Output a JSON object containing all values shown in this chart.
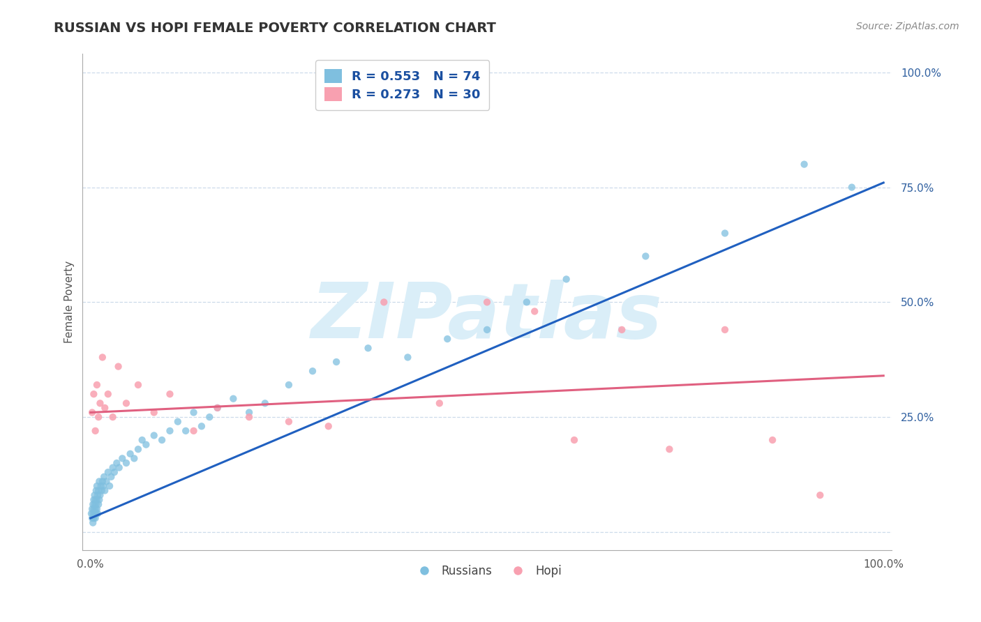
{
  "title": "RUSSIAN VS HOPI FEMALE POVERTY CORRELATION CHART",
  "source": "Source: ZipAtlas.com",
  "ylabel": "Female Poverty",
  "russian_R": 0.553,
  "russian_N": 74,
  "hopi_R": 0.273,
  "hopi_N": 30,
  "russian_color": "#7fbfdf",
  "hopi_color": "#f8a0b0",
  "russian_line_color": "#2060c0",
  "hopi_line_color": "#e06080",
  "background_color": "#ffffff",
  "watermark_color": "#daeef8",
  "russian_x": [
    0.001,
    0.002,
    0.002,
    0.003,
    0.003,
    0.003,
    0.004,
    0.004,
    0.004,
    0.005,
    0.005,
    0.005,
    0.006,
    0.006,
    0.006,
    0.007,
    0.007,
    0.007,
    0.008,
    0.008,
    0.008,
    0.009,
    0.009,
    0.01,
    0.01,
    0.011,
    0.011,
    0.012,
    0.013,
    0.014,
    0.015,
    0.016,
    0.017,
    0.018,
    0.02,
    0.022,
    0.024,
    0.026,
    0.028,
    0.03,
    0.033,
    0.036,
    0.04,
    0.045,
    0.05,
    0.055,
    0.06,
    0.065,
    0.07,
    0.08,
    0.09,
    0.1,
    0.11,
    0.12,
    0.13,
    0.14,
    0.15,
    0.16,
    0.18,
    0.2,
    0.22,
    0.25,
    0.28,
    0.31,
    0.35,
    0.4,
    0.45,
    0.5,
    0.55,
    0.6,
    0.7,
    0.8,
    0.9,
    0.96
  ],
  "russian_y": [
    0.04,
    0.03,
    0.05,
    0.02,
    0.04,
    0.06,
    0.03,
    0.05,
    0.07,
    0.04,
    0.06,
    0.08,
    0.03,
    0.05,
    0.07,
    0.04,
    0.06,
    0.09,
    0.05,
    0.07,
    0.1,
    0.04,
    0.08,
    0.06,
    0.09,
    0.07,
    0.11,
    0.08,
    0.1,
    0.09,
    0.11,
    0.1,
    0.12,
    0.09,
    0.11,
    0.13,
    0.1,
    0.12,
    0.14,
    0.13,
    0.15,
    0.14,
    0.16,
    0.15,
    0.17,
    0.16,
    0.18,
    0.2,
    0.19,
    0.21,
    0.2,
    0.22,
    0.24,
    0.22,
    0.26,
    0.23,
    0.25,
    0.27,
    0.29,
    0.26,
    0.28,
    0.32,
    0.35,
    0.37,
    0.4,
    0.38,
    0.42,
    0.44,
    0.5,
    0.55,
    0.6,
    0.65,
    0.8,
    0.75
  ],
  "hopi_x": [
    0.002,
    0.004,
    0.006,
    0.008,
    0.01,
    0.012,
    0.015,
    0.018,
    0.022,
    0.028,
    0.035,
    0.045,
    0.06,
    0.08,
    0.1,
    0.13,
    0.16,
    0.2,
    0.25,
    0.3,
    0.37,
    0.44,
    0.5,
    0.56,
    0.61,
    0.67,
    0.73,
    0.8,
    0.86,
    0.92
  ],
  "hopi_y": [
    0.26,
    0.3,
    0.22,
    0.32,
    0.25,
    0.28,
    0.38,
    0.27,
    0.3,
    0.25,
    0.36,
    0.28,
    0.32,
    0.26,
    0.3,
    0.22,
    0.27,
    0.25,
    0.24,
    0.23,
    0.5,
    0.28,
    0.5,
    0.48,
    0.2,
    0.44,
    0.18,
    0.44,
    0.2,
    0.08
  ],
  "russian_trend_start": 0.03,
  "russian_trend_end": 0.76,
  "hopi_trend_start": 0.26,
  "hopi_trend_end": 0.34,
  "y_tick_positions": [
    0.0,
    0.25,
    0.5,
    0.75,
    1.0
  ],
  "y_tick_labels": [
    "",
    "25.0%",
    "50.0%",
    "75.0%",
    "100.0%"
  ],
  "x_tick_positions": [
    0.0,
    1.0
  ],
  "x_tick_labels": [
    "0.0%",
    "100.0%"
  ],
  "xlim": [
    -0.01,
    1.01
  ],
  "ylim": [
    -0.04,
    1.04
  ]
}
